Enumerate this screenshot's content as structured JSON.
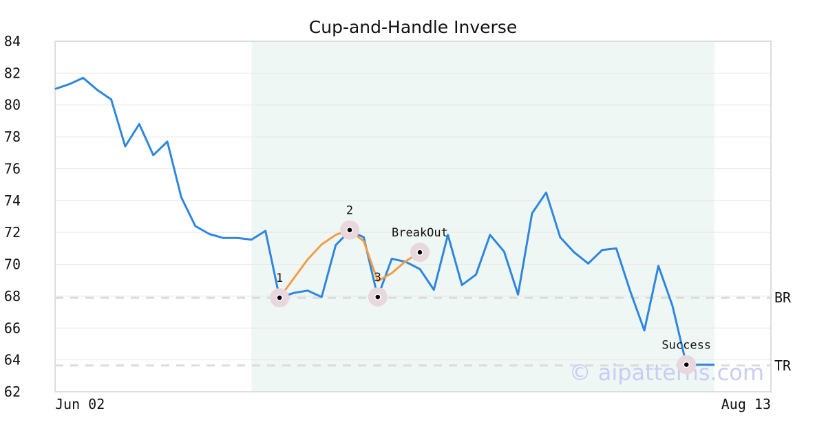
{
  "chart_data": {
    "type": "line",
    "title": "Cup-and-Handle Inverse",
    "ylim": [
      62,
      84
    ],
    "yticks": [
      84,
      82,
      80,
      78,
      76,
      74,
      72,
      70,
      68,
      66,
      64,
      62
    ],
    "xtick_labels": {
      "start": "Jun 02",
      "end": "Aug 13"
    },
    "grid": true,
    "series": [
      {
        "color": "#2e86de",
        "values": [
          81.0,
          81.3,
          81.7,
          80.95,
          80.35,
          77.4,
          78.8,
          76.85,
          77.7,
          74.2,
          72.4,
          71.9,
          71.65,
          71.65,
          71.55,
          72.1,
          67.9,
          68.2,
          68.35,
          67.95,
          71.2,
          72.1,
          71.7,
          67.95,
          70.35,
          70.15,
          69.7,
          68.4,
          71.85,
          68.7,
          69.35,
          71.85,
          70.8,
          68.1,
          73.2,
          74.5,
          71.7,
          70.75,
          70.05,
          70.9,
          71.0,
          68.3,
          65.85,
          69.9,
          67.4,
          63.7,
          63.7,
          63.7
        ]
      },
      {
        "color": "#f39c45",
        "x_start_index": 16,
        "values": [
          67.9,
          69.1,
          70.3,
          71.25,
          71.85,
          72.15,
          71.45,
          68.95,
          69.45,
          70.2,
          70.75
        ]
      }
    ],
    "shaded_region": {
      "from_index": 14,
      "to_index": 47,
      "color": "#eef7f3"
    },
    "points": [
      {
        "label": "1",
        "index": 16,
        "value": 67.9
      },
      {
        "label": "2",
        "index": 21,
        "value": 72.15
      },
      {
        "label": "3",
        "index": 23,
        "value": 67.95
      },
      {
        "label": "BreakOut",
        "index": 26,
        "value": 70.75
      },
      {
        "label": "Success",
        "index": 45,
        "value": 63.7
      }
    ],
    "levels": [
      {
        "label": "BR",
        "value": 67.9
      },
      {
        "label": "TR",
        "value": 63.65
      }
    ]
  },
  "watermark": "© aipatterns.com"
}
